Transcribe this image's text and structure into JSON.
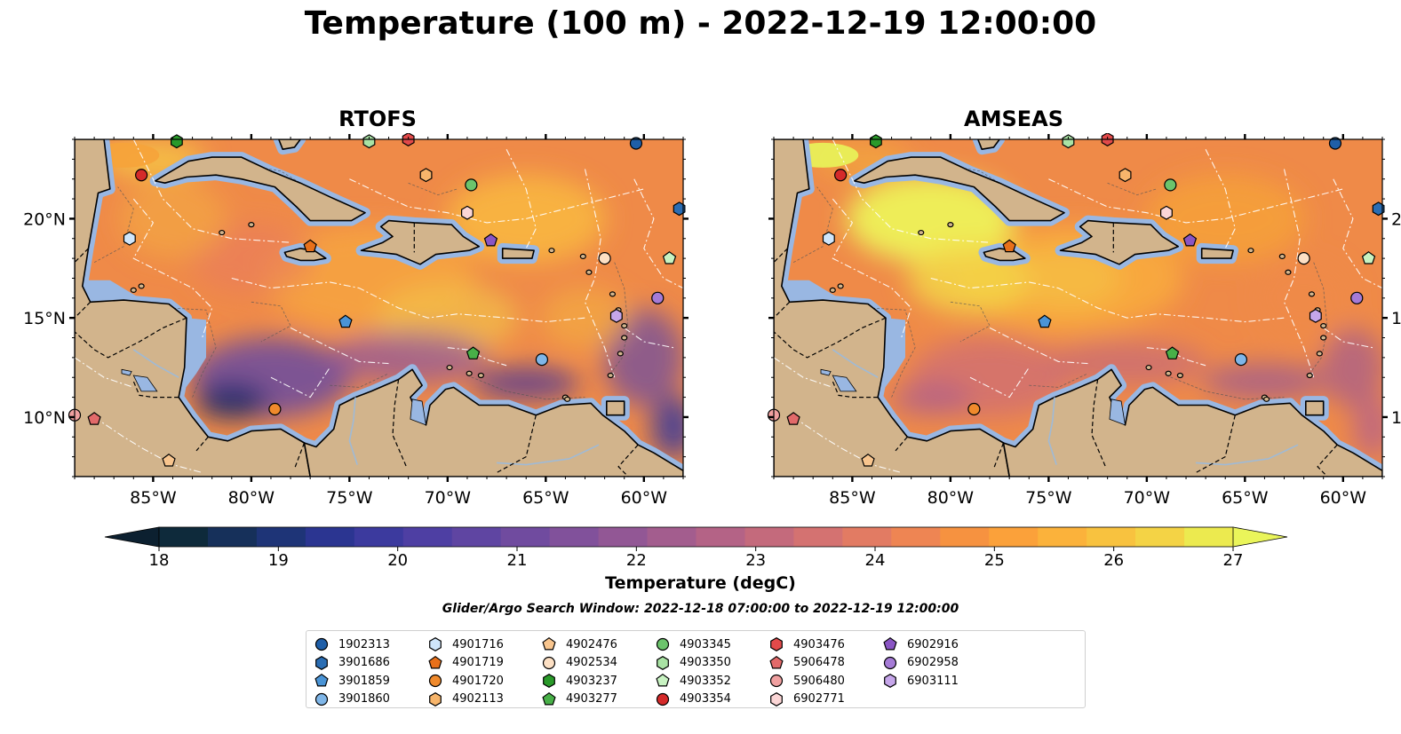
{
  "title": "Temperature (100 m) - 2022-12-19 12:00:00",
  "panels": [
    {
      "title": "RTOFS",
      "palette": "warm_with_cool_south",
      "nw_field": "#f6a33a"
    },
    {
      "title": "AMSEAS",
      "palette": "warm",
      "nw_field": "#e8f55a"
    }
  ],
  "map_extent": {
    "lon_min": -89,
    "lon_max": -58,
    "lat_min": 7,
    "lat_max": 24
  },
  "lon_ticks": [
    {
      "lon": -85,
      "label": "85°W"
    },
    {
      "lon": -80,
      "label": "80°W"
    },
    {
      "lon": -75,
      "label": "75°W"
    },
    {
      "lon": -70,
      "label": "70°W"
    },
    {
      "lon": -65,
      "label": "65°W"
    },
    {
      "lon": -60,
      "label": "60°W"
    }
  ],
  "lat_ticks": [
    {
      "lat": 20,
      "label": "20°N"
    },
    {
      "lat": 15,
      "label": "15°N"
    },
    {
      "lat": 10,
      "label": "10°N"
    }
  ],
  "colorbar": {
    "title": "Temperature (degC)",
    "min": 18,
    "max": 27,
    "ticks": [
      "18",
      "19",
      "20",
      "21",
      "22",
      "23",
      "24",
      "25",
      "26",
      "27"
    ],
    "colors": [
      "#0e2a3b",
      "#16305a",
      "#1e3477",
      "#2b3591",
      "#3c3a9e",
      "#4e3fa3",
      "#5f45a2",
      "#704b9f",
      "#81519b",
      "#925795",
      "#a35d8e",
      "#b46386",
      "#c46a7c",
      "#d47271",
      "#e27b63",
      "#ee8553",
      "#f69240",
      "#fba13a",
      "#fbb23b",
      "#f8c23f",
      "#f4d345",
      "#ecea4f"
    ],
    "under_color": "#0c2030",
    "over_color": "#eaf55a"
  },
  "colors": {
    "land": "#d2b48c",
    "water": "#99b7e2",
    "deep_dark": "#0b2233"
  },
  "search_window": "Glider/Argo Search Window: 2022-12-18 07:00:00 to 2022-12-19 12:00:00",
  "floats": [
    {
      "id": "1902313",
      "marker": "circle",
      "color": "#1f5fa8",
      "lon": -60.4,
      "lat": 23.8
    },
    {
      "id": "3901686",
      "marker": "hexagon",
      "color": "#2a6db3",
      "lon": -58.2,
      "lat": 20.5
    },
    {
      "id": "3901859",
      "marker": "pentagon",
      "color": "#4a94d6",
      "lon": -75.2,
      "lat": 14.8
    },
    {
      "id": "3901860",
      "marker": "circle",
      "color": "#7fb6e8",
      "lon": -65.2,
      "lat": 12.9
    },
    {
      "id": "4901716",
      "marker": "hexagon",
      "color": "#cfe6fb",
      "lon": -86.2,
      "lat": 19.0
    },
    {
      "id": "4901719",
      "marker": "pentagon",
      "color": "#e8701a",
      "lon": -77.0,
      "lat": 18.6
    },
    {
      "id": "4901720",
      "marker": "circle",
      "color": "#f08a2c",
      "lon": -78.8,
      "lat": 10.4
    },
    {
      "id": "4902113",
      "marker": "hexagon",
      "color": "#f7b56b",
      "lon": -71.1,
      "lat": 22.2
    },
    {
      "id": "4902476",
      "marker": "pentagon",
      "color": "#f8c58e",
      "lon": -84.2,
      "lat": 7.8
    },
    {
      "id": "4902534",
      "marker": "circle",
      "color": "#fde0c4",
      "lon": -62.0,
      "lat": 18.0
    },
    {
      "id": "4903237",
      "marker": "hexagon",
      "color": "#2a9a2a",
      "lon": -83.8,
      "lat": 23.9
    },
    {
      "id": "4903277",
      "marker": "pentagon",
      "color": "#48b048",
      "lon": -68.7,
      "lat": 13.2
    },
    {
      "id": "4903345",
      "marker": "circle",
      "color": "#6cc46c",
      "lon": -68.8,
      "lat": 21.7
    },
    {
      "id": "4903350",
      "marker": "hexagon",
      "color": "#a9e3a4",
      "lon": -74.0,
      "lat": 23.9
    },
    {
      "id": "4903352",
      "marker": "pentagon",
      "color": "#c8f3c2",
      "lon": -58.7,
      "lat": 18.0
    },
    {
      "id": "4903354",
      "marker": "circle",
      "color": "#d52a2a",
      "lon": -85.6,
      "lat": 22.2
    },
    {
      "id": "4903476",
      "marker": "hexagon",
      "color": "#e24a4a",
      "lon": -72.0,
      "lat": 24.0
    },
    {
      "id": "5906478",
      "marker": "pentagon",
      "color": "#e26a6a",
      "lon": -88.0,
      "lat": 9.9
    },
    {
      "id": "5906480",
      "marker": "circle",
      "color": "#f0a0a0",
      "lon": -89.0,
      "lat": 10.1
    },
    {
      "id": "6902771",
      "marker": "hexagon",
      "color": "#fbd6d6",
      "lon": -69.0,
      "lat": 20.3
    },
    {
      "id": "6902916",
      "marker": "pentagon",
      "color": "#8a55c4",
      "lon": -67.8,
      "lat": 18.9
    },
    {
      "id": "6902958",
      "marker": "circle",
      "color": "#a57bd6",
      "lon": -59.3,
      "lat": 16.0
    },
    {
      "id": "6903111",
      "marker": "hexagon",
      "color": "#c6a6ea",
      "lon": -61.4,
      "lat": 15.1
    }
  ]
}
